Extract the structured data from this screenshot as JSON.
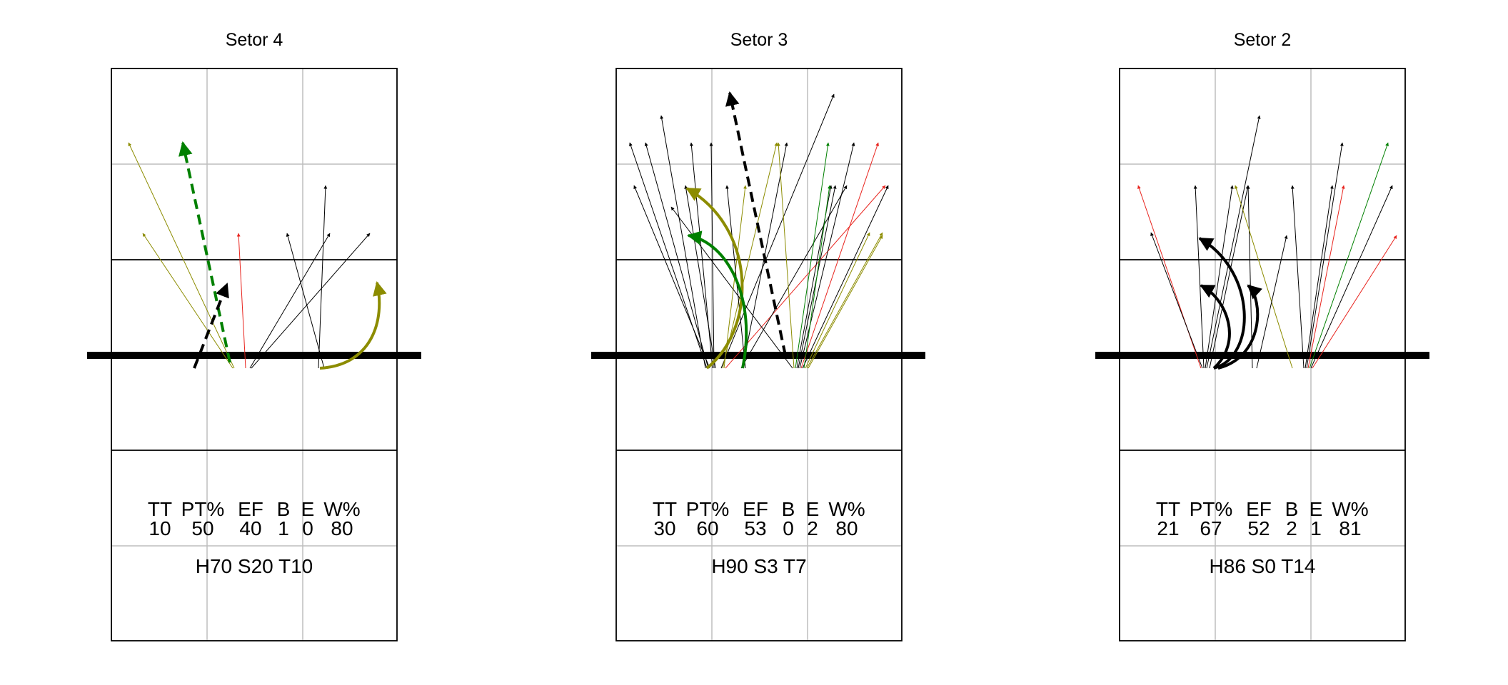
{
  "colors": {
    "black": "#000000",
    "olive": "#8c8c00",
    "green": "#008000",
    "red": "#e8241e",
    "grid": "#bebebe"
  },
  "panels": [
    {
      "title": "Setor 4",
      "stat_headers": [
        "TT",
        "PT%",
        "EF",
        "B",
        "E",
        "W%"
      ],
      "stat_values": [
        "10",
        "50",
        "40",
        "1",
        "0",
        "80"
      ],
      "summary": "H70 S20 T10"
    },
    {
      "title": "Setor 3",
      "stat_headers": [
        "TT",
        "PT%",
        "EF",
        "B",
        "E",
        "W%"
      ],
      "stat_values": [
        "30",
        "60",
        "53",
        "0",
        "2",
        "80"
      ],
      "summary": "H90 S3 T7"
    },
    {
      "title": "Setor 2",
      "stat_headers": [
        "TT",
        "PT%",
        "EF",
        "B",
        "E",
        "W%"
      ],
      "stat_values": [
        "21",
        "67",
        "52",
        "2",
        "1",
        "81"
      ],
      "summary": "H86 S0 T14"
    }
  ]
}
